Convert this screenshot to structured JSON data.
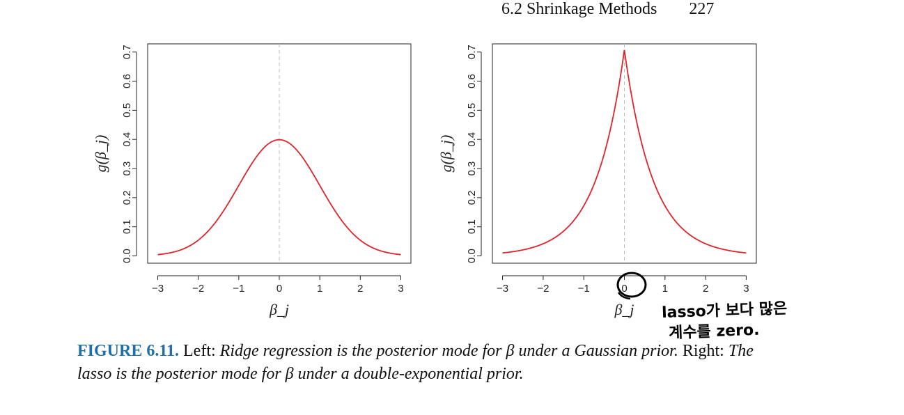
{
  "header": {
    "section": "6.2 Shrinkage Methods",
    "page": "227"
  },
  "chart_data": [
    {
      "type": "line",
      "panel": "left",
      "ylabel": "g(β_j)",
      "xlabel": "β_j",
      "xlim": [
        -3,
        3
      ],
      "ylim": [
        0,
        0.7
      ],
      "xticks": [
        "−3",
        "−2",
        "−1",
        "0",
        "1",
        "2",
        "3"
      ],
      "yticks": [
        "0.0",
        "0.1",
        "0.2",
        "0.3",
        "0.4",
        "0.5",
        "0.6",
        "0.7"
      ],
      "distribution": "gaussian",
      "peak": 0.399,
      "x": [
        -3,
        -2.5,
        -2,
        -1.5,
        -1,
        -0.5,
        0,
        0.5,
        1,
        1.5,
        2,
        2.5,
        3
      ],
      "y": [
        0.004,
        0.018,
        0.054,
        0.13,
        0.242,
        0.352,
        0.399,
        0.352,
        0.242,
        0.13,
        0.054,
        0.018,
        0.004
      ],
      "vline_x": 0,
      "line_color": "#e0242a"
    },
    {
      "type": "line",
      "panel": "right",
      "ylabel": "g(β_j)",
      "xlabel": "β_j",
      "xlim": [
        -3,
        3
      ],
      "ylim": [
        0,
        0.7
      ],
      "xticks": [
        "−3",
        "−2",
        "−1",
        "0",
        "1",
        "2",
        "3"
      ],
      "yticks": [
        "0.0",
        "0.1",
        "0.2",
        "0.3",
        "0.4",
        "0.5",
        "0.6",
        "0.7"
      ],
      "distribution": "laplace",
      "peak": 0.707,
      "x": [
        -3,
        -2,
        -1,
        -0.5,
        0,
        0.5,
        1,
        2,
        3
      ],
      "y": [
        0.01,
        0.042,
        0.172,
        0.349,
        0.707,
        0.349,
        0.172,
        0.042,
        0.01
      ],
      "vline_x": 0,
      "line_color": "#e0242a"
    }
  ],
  "caption": {
    "label": "FIGURE 6.11.",
    "left_word": "Left:",
    "left_text": "Ridge regression is the posterior mode for β under a Gaussian prior.",
    "right_word": "Right:",
    "right_text": "The lasso is the posterior mode for β under a double-exponential prior."
  },
  "handwriting": {
    "line1": "lasso가 보다 많은",
    "line2": "계수를 zero."
  }
}
